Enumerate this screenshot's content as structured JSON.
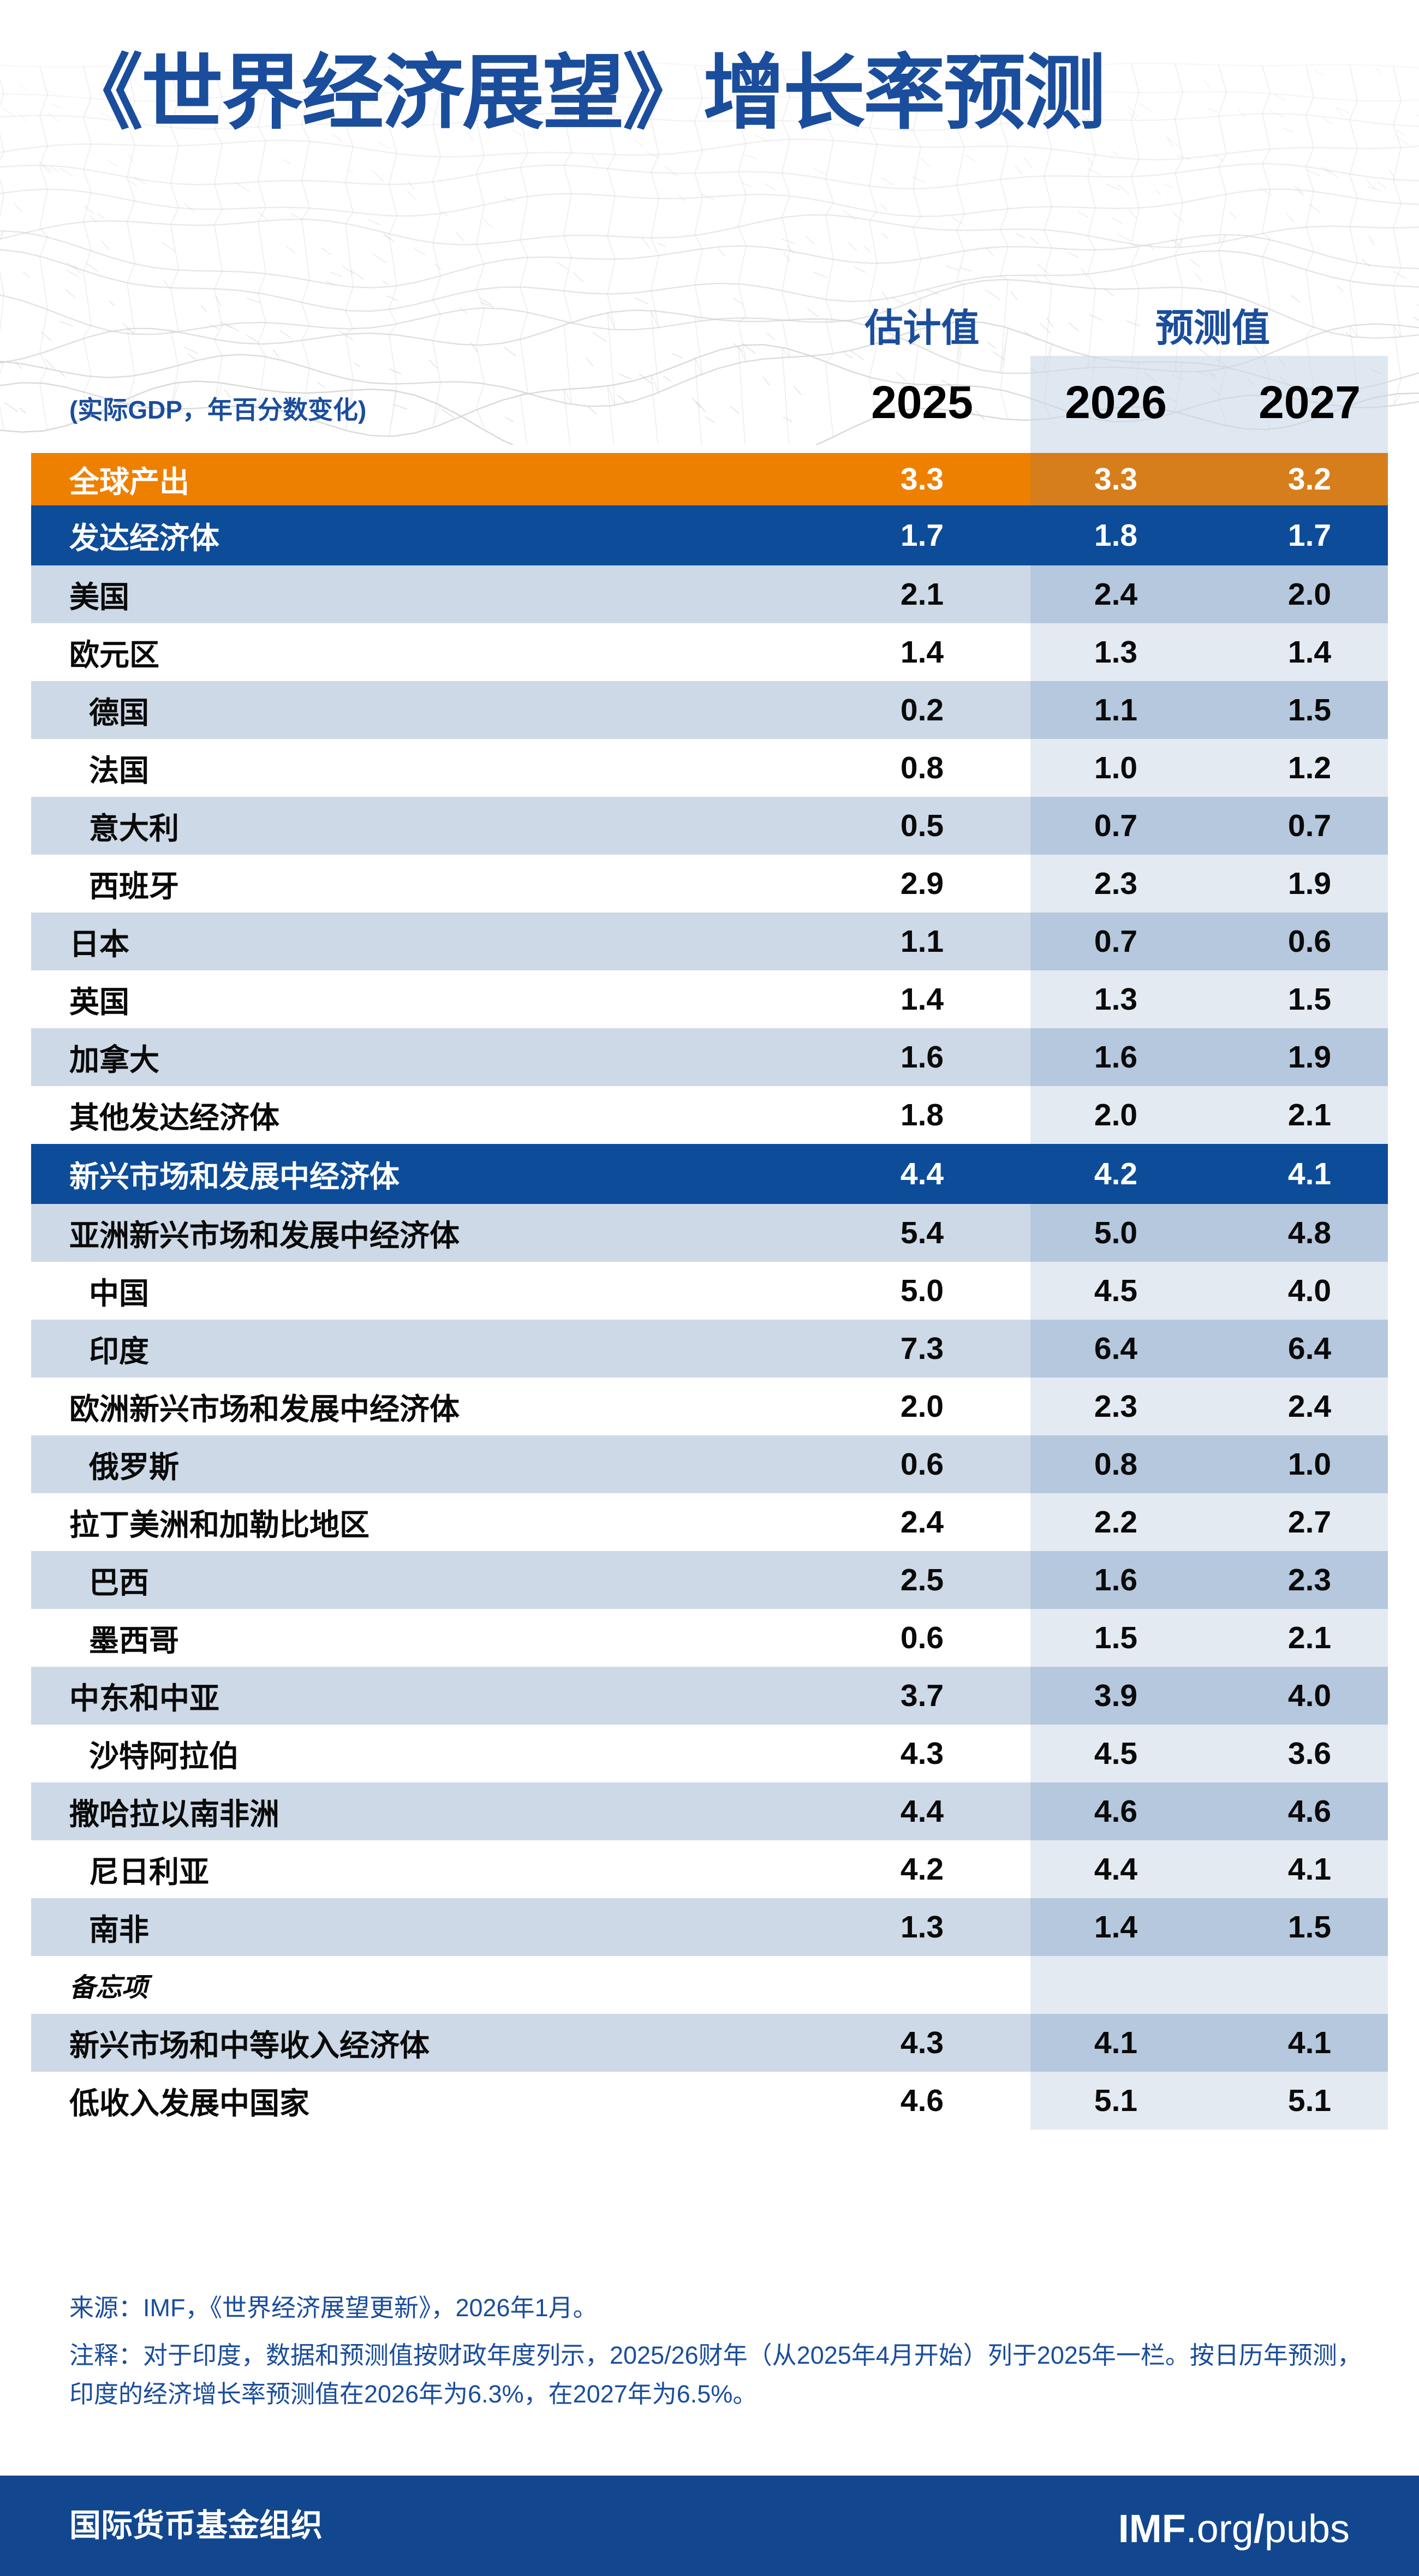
{
  "title": "《世界经济展望》增长率预测",
  "header": {
    "estimate_label": "估计值",
    "forecast_label": "预测值",
    "unit_label": "(实际GDP，年百分数变化)"
  },
  "chart_data": {
    "type": "table",
    "title": "《世界经济展望》增长率预测",
    "unit": "实际GDP，年百分数变化",
    "columns": [
      "2025",
      "2026",
      "2027"
    ],
    "column_groups": [
      {
        "label": "估计值",
        "columns": [
          "2025"
        ]
      },
      {
        "label": "预测值",
        "columns": [
          "2026",
          "2027"
        ]
      }
    ],
    "rows": [
      {
        "label": "全球产出",
        "values": [
          "3.3",
          "3.3",
          "3.2"
        ],
        "style": "orange",
        "indent": false
      },
      {
        "label": "发达经济体",
        "values": [
          "1.7",
          "1.8",
          "1.7"
        ],
        "style": "blue",
        "indent": false
      },
      {
        "label": "美国",
        "values": [
          "2.1",
          "2.4",
          "2.0"
        ],
        "style": "light",
        "indent": false
      },
      {
        "label": "欧元区",
        "values": [
          "1.4",
          "1.3",
          "1.4"
        ],
        "style": "white",
        "indent": false
      },
      {
        "label": "德国",
        "values": [
          "0.2",
          "1.1",
          "1.5"
        ],
        "style": "light",
        "indent": true
      },
      {
        "label": "法国",
        "values": [
          "0.8",
          "1.0",
          "1.2"
        ],
        "style": "white",
        "indent": true
      },
      {
        "label": "意大利",
        "values": [
          "0.5",
          "0.7",
          "0.7"
        ],
        "style": "light",
        "indent": true
      },
      {
        "label": "西班牙",
        "values": [
          "2.9",
          "2.3",
          "1.9"
        ],
        "style": "white",
        "indent": true
      },
      {
        "label": "日本",
        "values": [
          "1.1",
          "0.7",
          "0.6"
        ],
        "style": "light",
        "indent": false
      },
      {
        "label": "英国",
        "values": [
          "1.4",
          "1.3",
          "1.5"
        ],
        "style": "white",
        "indent": false
      },
      {
        "label": "加拿大",
        "values": [
          "1.6",
          "1.6",
          "1.9"
        ],
        "style": "light",
        "indent": false
      },
      {
        "label": "其他发达经济体",
        "values": [
          "1.8",
          "2.0",
          "2.1"
        ],
        "style": "white",
        "indent": false
      },
      {
        "label": "新兴市场和发展中经济体",
        "values": [
          "4.4",
          "4.2",
          "4.1"
        ],
        "style": "blue",
        "indent": false
      },
      {
        "label": "亚洲新兴市场和发展中经济体",
        "values": [
          "5.4",
          "5.0",
          "4.8"
        ],
        "style": "light",
        "indent": false
      },
      {
        "label": "中国",
        "values": [
          "5.0",
          "4.5",
          "4.0"
        ],
        "style": "white",
        "indent": true
      },
      {
        "label": "印度",
        "values": [
          "7.3",
          "6.4",
          "6.4"
        ],
        "style": "light",
        "indent": true
      },
      {
        "label": "欧洲新兴市场和发展中经济体",
        "values": [
          "2.0",
          "2.3",
          "2.4"
        ],
        "style": "white",
        "indent": false
      },
      {
        "label": "俄罗斯",
        "values": [
          "0.6",
          "0.8",
          "1.0"
        ],
        "style": "light",
        "indent": true
      },
      {
        "label": "拉丁美洲和加勒比地区",
        "values": [
          "2.4",
          "2.2",
          "2.7"
        ],
        "style": "white",
        "indent": false
      },
      {
        "label": "巴西",
        "values": [
          "2.5",
          "1.6",
          "2.3"
        ],
        "style": "light",
        "indent": true
      },
      {
        "label": "墨西哥",
        "values": [
          "0.6",
          "1.5",
          "2.1"
        ],
        "style": "white",
        "indent": true
      },
      {
        "label": "中东和中亚",
        "values": [
          "3.7",
          "3.9",
          "4.0"
        ],
        "style": "light",
        "indent": false
      },
      {
        "label": "沙特阿拉伯",
        "values": [
          "4.3",
          "4.5",
          "3.6"
        ],
        "style": "white",
        "indent": true
      },
      {
        "label": "撒哈拉以南非洲",
        "values": [
          "4.4",
          "4.6",
          "4.6"
        ],
        "style": "light",
        "indent": false
      },
      {
        "label": "尼日利亚",
        "values": [
          "4.2",
          "4.4",
          "4.1"
        ],
        "style": "white",
        "indent": true
      },
      {
        "label": "南非",
        "values": [
          "1.3",
          "1.4",
          "1.5"
        ],
        "style": "light",
        "indent": true
      },
      {
        "label": "备忘项",
        "values": [
          "",
          "",
          ""
        ],
        "style": "memo",
        "indent": false
      },
      {
        "label": "新兴市场和中等收入经济体",
        "values": [
          "4.3",
          "4.1",
          "4.1"
        ],
        "style": "light",
        "indent": false
      },
      {
        "label": "低收入发展中国家",
        "values": [
          "4.6",
          "5.1",
          "5.1"
        ],
        "style": "white",
        "indent": false
      }
    ]
  },
  "footer": {
    "source": "来源：IMF，《世界经济展望更新》，2026年1月。",
    "note_line1": "注释：对于印度，数据和预测值按财政年度列示，2025/26财年（从2025年4月开始）列于2025年一栏。按日历年预测，",
    "note_line2": "印度的经济增长率预测值在2026年为6.3%，在2027年为6.5%。"
  },
  "bottom_bar": {
    "organization": "国际货币基金组织",
    "site_imf": "IMF",
    "site_org": ".org",
    "site_slash": "/",
    "site_pubs": "pubs"
  },
  "colors": {
    "title_blue": "#1a4d9c",
    "row_blue": "#0d4c99",
    "row_orange": "#ee8000",
    "row_orange_shaded": "#d67e1c",
    "row_light": "#cdd9e7",
    "row_light_shaded": "#b6c8de",
    "row_white_shaded": "#e4eaf2",
    "forecast_band": "rgba(203,216,232,0.62)",
    "footer_bar_blue": "#12478f",
    "mesh_gray": "#cfcfcf"
  }
}
